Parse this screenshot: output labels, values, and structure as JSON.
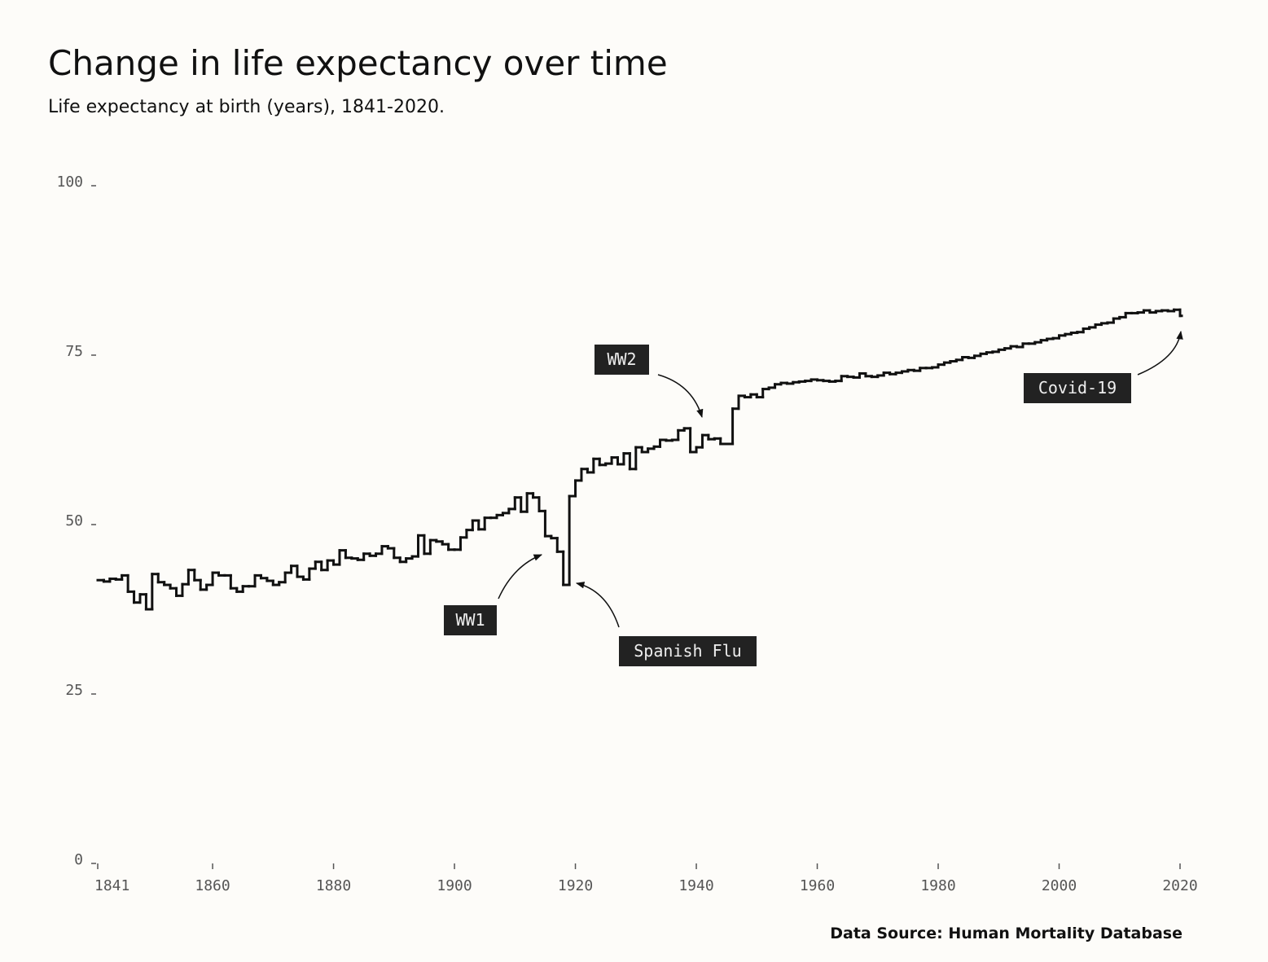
{
  "chart_data": {
    "type": "step",
    "title": "Change in life expectancy over time",
    "subtitle": "Life expectancy at birth (years), 1841-2020.",
    "caption": "Data Source: Human Mortality Database",
    "x": [
      1841,
      1842,
      1843,
      1844,
      1845,
      1846,
      1847,
      1848,
      1849,
      1850,
      1851,
      1852,
      1853,
      1854,
      1855,
      1856,
      1857,
      1858,
      1859,
      1860,
      1861,
      1862,
      1863,
      1864,
      1865,
      1866,
      1867,
      1868,
      1869,
      1870,
      1871,
      1872,
      1873,
      1874,
      1875,
      1876,
      1877,
      1878,
      1879,
      1880,
      1881,
      1882,
      1883,
      1884,
      1885,
      1886,
      1887,
      1888,
      1889,
      1890,
      1891,
      1892,
      1893,
      1894,
      1895,
      1896,
      1897,
      1898,
      1899,
      1900,
      1901,
      1902,
      1903,
      1904,
      1905,
      1906,
      1907,
      1908,
      1909,
      1910,
      1911,
      1912,
      1913,
      1914,
      1915,
      1916,
      1917,
      1918,
      1919,
      1920,
      1921,
      1922,
      1923,
      1924,
      1925,
      1926,
      1927,
      1928,
      1929,
      1930,
      1931,
      1932,
      1933,
      1934,
      1935,
      1936,
      1937,
      1938,
      1939,
      1940,
      1941,
      1942,
      1943,
      1944,
      1945,
      1946,
      1947,
      1948,
      1949,
      1950,
      1951,
      1952,
      1953,
      1954,
      1955,
      1956,
      1957,
      1958,
      1959,
      1960,
      1961,
      1962,
      1963,
      1964,
      1965,
      1966,
      1967,
      1968,
      1969,
      1970,
      1971,
      1972,
      1973,
      1974,
      1975,
      1976,
      1977,
      1978,
      1979,
      1980,
      1981,
      1982,
      1983,
      1984,
      1985,
      1986,
      1987,
      1988,
      1989,
      1990,
      1991,
      1992,
      1993,
      1994,
      1995,
      1996,
      1997,
      1998,
      1999,
      2000,
      2001,
      2002,
      2003,
      2004,
      2005,
      2006,
      2007,
      2008,
      2009,
      2010,
      2011,
      2012,
      2013,
      2014,
      2015,
      2016,
      2017,
      2018,
      2019,
      2020
    ],
    "series": [
      {
        "color": "#111111",
        "values": [
          41.8,
          41.6,
          42.0,
          41.9,
          42.5,
          40.1,
          38.5,
          39.7,
          37.5,
          42.7,
          41.5,
          41.1,
          40.6,
          39.5,
          41.2,
          43.3,
          41.8,
          40.4,
          41.1,
          42.9,
          42.5,
          42.5,
          40.6,
          40.1,
          40.9,
          40.9,
          42.5,
          42.1,
          41.7,
          41.1,
          41.5,
          42.9,
          43.9,
          42.3,
          41.9,
          43.5,
          44.5,
          43.3,
          44.7,
          44.1,
          46.2,
          45.1,
          45.0,
          44.8,
          45.7,
          45.4,
          45.7,
          46.8,
          46.5,
          45.1,
          44.5,
          45.0,
          45.3,
          48.4,
          45.7,
          47.7,
          47.5,
          47.1,
          46.3,
          46.3,
          48.1,
          49.2,
          50.6,
          49.3,
          51.0,
          51.0,
          51.4,
          51.7,
          52.3,
          54.0,
          51.9,
          54.6,
          54.0,
          52.0,
          48.3,
          48.0,
          46.0,
          41.1,
          54.2,
          56.5,
          58.2,
          57.7,
          59.7,
          58.8,
          59.0,
          59.9,
          58.9,
          60.5,
          58.2,
          61.4,
          60.7,
          61.2,
          61.5,
          62.5,
          62.4,
          62.5,
          63.9,
          64.2,
          60.7,
          61.4,
          63.2,
          62.6,
          62.7,
          61.9,
          61.9,
          67.1,
          69.0,
          68.8,
          69.2,
          68.8,
          70.0,
          70.2,
          70.7,
          70.9,
          70.8,
          71.0,
          71.1,
          71.2,
          71.4,
          71.3,
          71.2,
          71.1,
          71.2,
          71.9,
          71.8,
          71.7,
          72.3,
          71.9,
          71.8,
          72.0,
          72.4,
          72.2,
          72.4,
          72.6,
          72.8,
          72.7,
          73.1,
          73.1,
          73.2,
          73.6,
          73.9,
          74.1,
          74.3,
          74.7,
          74.6,
          74.9,
          75.2,
          75.4,
          75.5,
          75.8,
          76.0,
          76.3,
          76.2,
          76.7,
          76.7,
          76.9,
          77.2,
          77.4,
          77.5,
          77.9,
          78.1,
          78.3,
          78.4,
          78.9,
          79.1,
          79.5,
          79.7,
          79.8,
          80.4,
          80.6,
          81.2,
          81.2,
          81.3,
          81.6,
          81.3,
          81.5,
          81.6,
          81.5,
          81.7,
          80.8
        ]
      }
    ],
    "xlim": [
      1841,
      2020
    ],
    "xticks": [
      1841,
      1860,
      1880,
      1900,
      1920,
      1940,
      1960,
      1980,
      2000,
      2020
    ],
    "ylim": [
      0,
      100
    ],
    "yticks": [
      0,
      25,
      50,
      75,
      100
    ],
    "annotations": [
      {
        "text": "WW1"
      },
      {
        "text": "WW2"
      },
      {
        "text": "Spanish Flu"
      },
      {
        "text": "Covid-19"
      }
    ]
  }
}
